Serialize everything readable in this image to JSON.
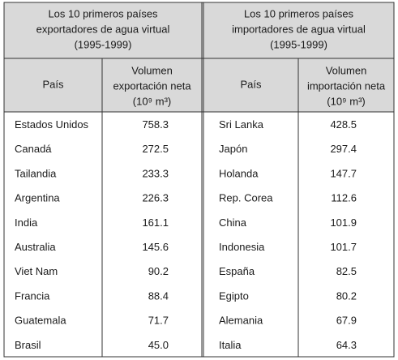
{
  "table": {
    "left": {
      "title": [
        "Los 10 primeros países",
        "exportadores de agua virtual",
        "(1995-1999)"
      ],
      "headers": [
        [
          "País"
        ],
        [
          "Volumen",
          "exportación neta",
          "(10⁹ m³)"
        ]
      ],
      "rows": [
        [
          "Estados Unidos",
          "758.3"
        ],
        [
          "Canadá",
          "272.5"
        ],
        [
          "Tailandia",
          "233.3"
        ],
        [
          "Argentina",
          "226.3"
        ],
        [
          "India",
          "161.1"
        ],
        [
          "Australia",
          "145.6"
        ],
        [
          "Viet Nam",
          "90.2"
        ],
        [
          "Francia",
          "88.4"
        ],
        [
          "Guatemala",
          "71.7"
        ],
        [
          "Brasil",
          "45.0"
        ]
      ]
    },
    "right": {
      "title": [
        "Los 10 primeros países",
        "importadores de agua virtual",
        "(1995-1999)"
      ],
      "headers": [
        [
          "País"
        ],
        [
          "Volumen",
          "importación neta",
          "(10⁹ m³)"
        ]
      ],
      "rows": [
        [
          "Sri Lanka",
          "428.5"
        ],
        [
          "Japón",
          "297.4"
        ],
        [
          "Holanda",
          "147.7"
        ],
        [
          "Rep. Corea",
          "112.6"
        ],
        [
          "China",
          "101.9"
        ],
        [
          "Indonesia",
          "101.7"
        ],
        [
          "España",
          "82.5"
        ],
        [
          "Egipto",
          "80.2"
        ],
        [
          "Alemania",
          "67.9"
        ],
        [
          "Italia",
          "64.3"
        ]
      ]
    }
  }
}
